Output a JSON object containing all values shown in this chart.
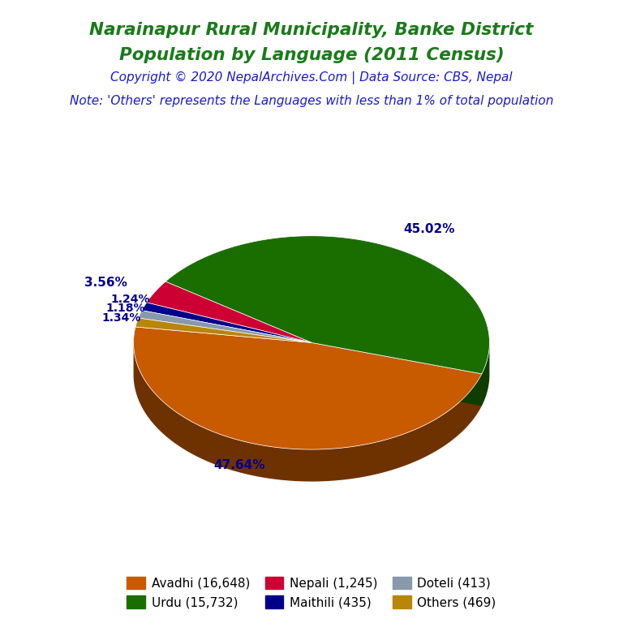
{
  "title_line1": "Narainapur Rural Municipality, Banke District",
  "title_line2": "Population by Language (2011 Census)",
  "title_color": "#1a7a1a",
  "copyright_text": "Copyright © 2020 NepalArchives.Com | Data Source: CBS, Nepal",
  "copyright_color": "#1a1acd",
  "note_text": "Note: 'Others' represents the Languages with less than 1% of total population",
  "note_color": "#1a1acd",
  "labels": [
    "Avadhi",
    "Urdu",
    "Nepali",
    "Maithili",
    "Doteli",
    "Others"
  ],
  "values": [
    16648,
    15732,
    1245,
    435,
    413,
    469
  ],
  "percentages": [
    47.64,
    45.02,
    3.56,
    1.24,
    1.18,
    1.34
  ],
  "colors": [
    "#c85a00",
    "#1a6e00",
    "#cc0033",
    "#00008b",
    "#8899aa",
    "#b8860b"
  ],
  "legend_labels": [
    "Avadhi (16,648)",
    "Urdu (15,732)",
    "Nepali (1,245)",
    "Maithili (435)",
    "Doteli (413)",
    "Others (469)"
  ],
  "pct_label_color": "#00008b",
  "background_color": "#ffffff",
  "startangle": 171.5
}
